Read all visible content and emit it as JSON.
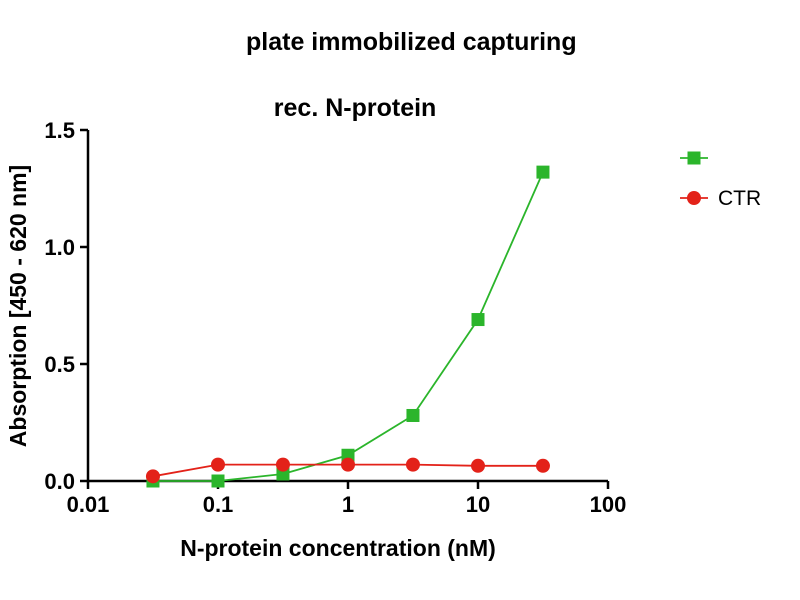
{
  "title": {
    "line1": "plate immobilized capturing",
    "line2": "rec. N-protein"
  },
  "chart_data": {
    "type": "line",
    "title": "plate immobilized capturing rec. N-protein",
    "xlabel": "N-protein concentration (nM)",
    "ylabel": "Absorption [450 - 620 nm]",
    "x_scale": "log",
    "xlim": [
      0.01,
      100
    ],
    "ylim": [
      0,
      1.5
    ],
    "x_ticks": [
      0.01,
      0.1,
      1,
      10,
      100
    ],
    "x_tick_labels": [
      "0.01",
      "0.1",
      "1",
      "10",
      "100"
    ],
    "y_ticks": [
      0,
      0.5,
      1.0,
      1.5
    ],
    "y_tick_labels": [
      "0.0",
      "0.5",
      "1.0",
      "1.5"
    ],
    "x": [
      0.0316,
      0.1,
      0.316,
      1,
      3.16,
      10,
      31.6
    ],
    "series": [
      {
        "name": "",
        "marker": "square",
        "color": "#2bb52b",
        "values": [
          0.0,
          0.0,
          0.03,
          0.11,
          0.28,
          0.69,
          1.32
        ]
      },
      {
        "name": "CTR",
        "marker": "circle",
        "color": "#e32219",
        "values": [
          0.02,
          0.07,
          0.07,
          0.07,
          0.07,
          0.065,
          0.065
        ]
      }
    ],
    "legend_position": "right",
    "grid": "off"
  }
}
